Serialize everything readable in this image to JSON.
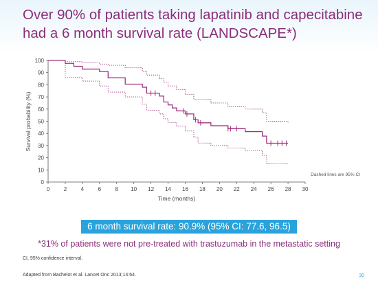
{
  "slide": {
    "title": "Over 90% of patients taking lapatinib and capecitabine had a 6 month survival rate (LANDSCAPE*)",
    "banner": "6 month survival rate: 90.9% (95% CI: 77.6, 96.5)",
    "note": "*31% of patients were not pre-treated with trastuzumab in the metastatic setting",
    "footnote_ci": "CI, 95%  confidence interval.",
    "footnote_source": "Adapted from Bachelot et al. Lancet Onc 2013;14:64.",
    "page_number": "30"
  },
  "colors": {
    "title": "#8c2d7a",
    "curve": "#a0317f",
    "banner": "#2aa3dd",
    "header_band": "#e9f5fb"
  },
  "chart_data": {
    "type": "line",
    "xlabel": "Time (months)",
    "ylabel": "Survival probability (%)",
    "xlim": [
      0,
      30
    ],
    "ylim": [
      0,
      100
    ],
    "x_ticks": [
      0,
      2,
      4,
      6,
      8,
      10,
      12,
      14,
      16,
      18,
      20,
      22,
      24,
      26,
      28,
      30
    ],
    "y_ticks": [
      0,
      10,
      20,
      30,
      40,
      50,
      60,
      70,
      80,
      90,
      100
    ],
    "annotation": "Dashed lines are 95% CI",
    "grid": false,
    "series": [
      {
        "style": "solid-step",
        "points": [
          [
            0,
            100
          ],
          [
            2,
            100
          ],
          [
            2,
            97.6
          ],
          [
            3,
            95.2
          ],
          [
            4,
            92.9
          ],
          [
            6,
            92.9
          ],
          [
            6,
            90.9
          ],
          [
            7,
            85.7
          ],
          [
            9,
            85.7
          ],
          [
            9,
            80.5
          ],
          [
            11,
            80.5
          ],
          [
            11,
            78
          ],
          [
            11.5,
            73.1
          ],
          [
            13,
            73.1
          ],
          [
            13,
            70.7
          ],
          [
            13.5,
            65.8
          ],
          [
            14,
            63.4
          ],
          [
            14.5,
            60.9
          ],
          [
            15,
            60.9
          ],
          [
            15,
            58.5
          ],
          [
            16,
            56
          ],
          [
            17,
            51.2
          ],
          [
            17.5,
            48.7
          ],
          [
            19,
            48.7
          ],
          [
            19,
            46.3
          ],
          [
            21,
            46.3
          ],
          [
            21,
            43.9
          ],
          [
            23,
            43.9
          ],
          [
            23,
            41.5
          ],
          [
            25,
            37.8
          ],
          [
            25.5,
            31.9
          ],
          [
            28,
            31.9
          ]
        ],
        "censor_x": [
          12,
          12.5,
          15.8,
          16.2,
          17.2,
          17.8,
          21,
          21.3,
          22,
          26,
          26.8,
          27.3,
          27.8
        ]
      },
      {
        "style": "dotted-step",
        "points": [
          [
            0,
            100
          ],
          [
            2,
            100
          ],
          [
            2,
            99
          ],
          [
            4,
            98
          ],
          [
            6,
            97
          ],
          [
            7,
            96
          ],
          [
            9,
            94
          ],
          [
            11,
            91
          ],
          [
            11.5,
            88
          ],
          [
            13,
            85
          ],
          [
            13.5,
            82
          ],
          [
            14,
            79
          ],
          [
            15,
            76
          ],
          [
            16,
            72
          ],
          [
            17,
            68
          ],
          [
            19,
            65
          ],
          [
            21,
            62
          ],
          [
            23,
            60
          ],
          [
            25,
            57
          ],
          [
            25.5,
            50
          ],
          [
            28,
            49
          ]
        ]
      },
      {
        "style": "dotted-step",
        "points": [
          [
            0,
            100
          ],
          [
            2,
            100
          ],
          [
            2,
            86
          ],
          [
            4,
            83
          ],
          [
            6,
            79
          ],
          [
            7,
            74
          ],
          [
            9,
            70
          ],
          [
            11,
            64
          ],
          [
            11.5,
            59
          ],
          [
            13,
            56
          ],
          [
            13.5,
            52
          ],
          [
            14,
            49
          ],
          [
            15,
            46
          ],
          [
            16,
            42
          ],
          [
            17,
            37
          ],
          [
            17.5,
            32
          ],
          [
            19,
            30
          ],
          [
            21,
            28
          ],
          [
            23,
            26
          ],
          [
            25,
            22
          ],
          [
            25.5,
            15
          ],
          [
            28,
            15
          ]
        ]
      }
    ]
  }
}
